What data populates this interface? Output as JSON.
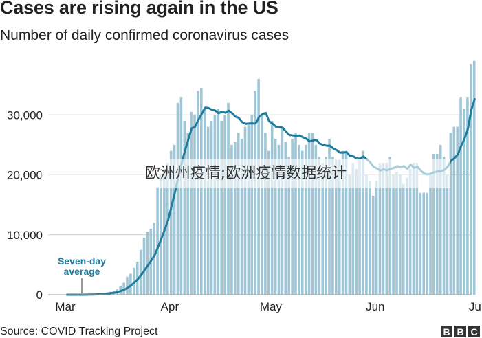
{
  "title": "Cases are rising again in the US",
  "subtitle": "Number of daily confirmed coronavirus cases",
  "source": "Source: COVID Tracking Project",
  "logo": [
    "B",
    "B",
    "C"
  ],
  "watermark": "欧洲州疫情;欧洲疫情数据统计",
  "colors": {
    "bars": "#9fc6d7",
    "average_line": "#1f7c9c",
    "axis_text": "#222222",
    "grid": "#cccccc",
    "annotation": "#1f7c9c"
  },
  "chart_data": {
    "type": "bar",
    "title": "Cases are rising again in the US",
    "subtitle": "Number of daily confirmed coronavirus cases",
    "xlabel": "",
    "ylabel": "",
    "ylim": [
      0,
      40000
    ],
    "yticks": [
      0,
      10000,
      20000,
      30000
    ],
    "ytick_labels": [
      "0",
      "10,000",
      "20,000",
      "30,000"
    ],
    "grid": true,
    "start_date": "Mar 1",
    "xticks": [
      {
        "label": "Mar",
        "day": 0
      },
      {
        "label": "Apr",
        "day": 31
      },
      {
        "label": "May",
        "day": 61
      },
      {
        "label": "Jun",
        "day": 92
      },
      {
        "label": "Jul",
        "day": 122
      }
    ],
    "annotation": {
      "text": [
        "Seven-day",
        "average"
      ],
      "day": 11
    },
    "series": [
      {
        "name": "Daily cases",
        "type": "bar",
        "values": [
          0,
          0,
          0,
          0,
          0,
          0,
          50,
          100,
          120,
          150,
          200,
          300,
          400,
          500,
          600,
          900,
          1500,
          2000,
          3000,
          3500,
          4500,
          5500,
          7500,
          9500,
          10500,
          11000,
          12000,
          18000,
          20000,
          21000,
          22000,
          24000,
          25000,
          32000,
          33000,
          29000,
          27000,
          30500,
          30000,
          34000,
          34500,
          31000,
          28000,
          29000,
          30000,
          31000,
          29000,
          30000,
          32000,
          25000,
          25500,
          27000,
          26000,
          28000,
          28500,
          30000,
          34000,
          36000,
          30000,
          27000,
          24000,
          29000,
          26000,
          25000,
          28000,
          25500,
          23000,
          26000,
          27000,
          25000,
          24000,
          25000,
          27000,
          27000,
          25000,
          23000,
          22000,
          23000,
          26000,
          23000,
          22500,
          22500,
          24000,
          24000,
          20000,
          22000,
          21000,
          22500,
          24000,
          20000,
          19000,
          16500,
          19000,
          22000,
          22000,
          22000,
          23000,
          20000,
          20500,
          20000,
          18500,
          19500,
          21000,
          22000,
          22000,
          17000,
          17000,
          17000,
          20000,
          23500,
          23500,
          25000,
          23000,
          20000,
          27000,
          28000,
          28000,
          33000,
          31000,
          33000,
          38500,
          39000
        ]
      },
      {
        "name": "Seven-day average",
        "type": "line",
        "values": [
          0,
          0,
          0,
          0,
          0,
          0,
          7,
          21,
          38,
          60,
          89,
          131,
          189,
          257,
          333,
          450,
          636,
          843,
          1171,
          1543,
          2050,
          2564,
          3286,
          4071,
          4886,
          5696,
          6571,
          7950,
          9371,
          10871,
          12400,
          14714,
          17014,
          19571,
          21857,
          24000,
          25857,
          27786,
          28000,
          29214,
          30143,
          31214,
          31143,
          30857,
          30714,
          30286,
          30514,
          30357,
          30714,
          30286,
          29714,
          29500,
          28786,
          28500,
          28571,
          28571,
          28571,
          29643,
          30143,
          30321,
          28929,
          28536,
          28036,
          28000,
          27857,
          27214,
          26643,
          26571,
          26500,
          26571,
          26286,
          26036,
          25571,
          25714,
          25857,
          25214,
          25000,
          24857,
          24857,
          24429,
          24143,
          23714,
          23714,
          23786,
          23143,
          23071,
          22714,
          22714,
          23071,
          22571,
          22071,
          21357,
          21071,
          20714,
          20929,
          20757,
          20986,
          21143,
          21457,
          21214,
          21457,
          21000,
          21714,
          21157,
          21371,
          20714,
          20214,
          20071,
          20200,
          20429,
          20550,
          20600,
          20829,
          21371,
          22371,
          22786,
          23414,
          24857,
          26071,
          27714,
          30857,
          32643
        ]
      }
    ]
  }
}
